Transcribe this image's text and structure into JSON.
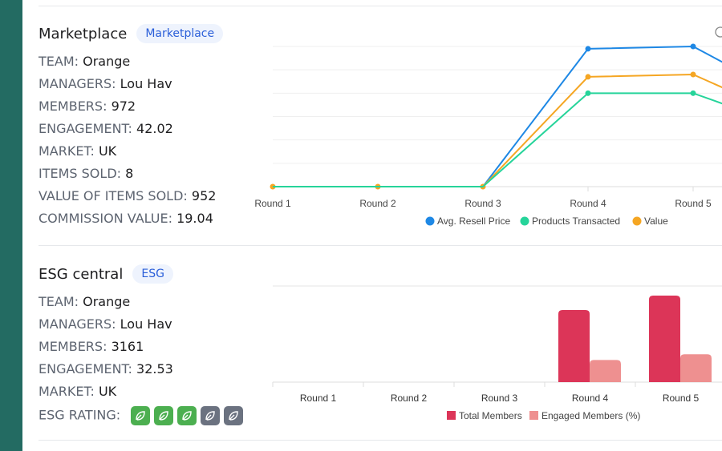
{
  "marketplace": {
    "title": "Marketplace",
    "badge": "Marketplace",
    "fields": [
      {
        "key": "TEAM:",
        "value": "Orange"
      },
      {
        "key": "MANAGERS:",
        "value": "Lou Hav"
      },
      {
        "key": "MEMBERS:",
        "value": "972"
      },
      {
        "key": "ENGAGEMENT:",
        "value": "42.02"
      },
      {
        "key": "MARKET:",
        "value": "UK"
      },
      {
        "key": "ITEMS SOLD:",
        "value": "8"
      },
      {
        "key": "VALUE OF ITEMS SOLD:",
        "value": "952"
      },
      {
        "key": "COMMISSION VALUE:",
        "value": "19.04"
      }
    ]
  },
  "esg": {
    "title": "ESG central",
    "badge": "ESG",
    "fields": [
      {
        "key": "TEAM:",
        "value": "Orange"
      },
      {
        "key": "MANAGERS:",
        "value": "Lou Hav"
      },
      {
        "key": "MEMBERS:",
        "value": "3161"
      },
      {
        "key": "ENGAGEMENT:",
        "value": "32.53"
      },
      {
        "key": "MARKET:",
        "value": "UK"
      }
    ],
    "rating_label": "ESG RATING:",
    "rating": 3,
    "rating_max": 5,
    "rating_colors": {
      "on": "#4caf50",
      "off": "#6b7280"
    }
  },
  "chart_data": [
    {
      "type": "line",
      "categories": [
        "Round 1",
        "Round 2",
        "Round 3",
        "Round 4",
        "Round 5"
      ],
      "series": [
        {
          "name": "Avg. Resell Price",
          "color": "#1e88e5",
          "values": [
            0,
            0,
            0,
            5.9,
            6.0
          ]
        },
        {
          "name": "Products Transacted",
          "color": "#26d49a",
          "values": [
            0,
            0,
            0,
            4.0,
            4.0
          ]
        },
        {
          "name": "Value",
          "color": "#f5a623",
          "values": [
            0,
            0,
            0,
            4.7,
            4.8
          ]
        }
      ],
      "ylim": [
        0,
        6
      ],
      "grid": true,
      "legend": "bottom"
    },
    {
      "type": "bar",
      "categories": [
        "Round 1",
        "Round 2",
        "Round 3",
        "Round 4",
        "Round 5"
      ],
      "series": [
        {
          "name": "Total Members",
          "color": "#dc3558",
          "values": [
            0,
            0,
            0,
            75,
            90
          ]
        },
        {
          "name": "Engaged Members (%)",
          "color": "#ee9090",
          "values": [
            0,
            0,
            0,
            23,
            29
          ]
        }
      ],
      "ylim": [
        0,
        100
      ],
      "grid": false,
      "legend": "bottom"
    }
  ]
}
